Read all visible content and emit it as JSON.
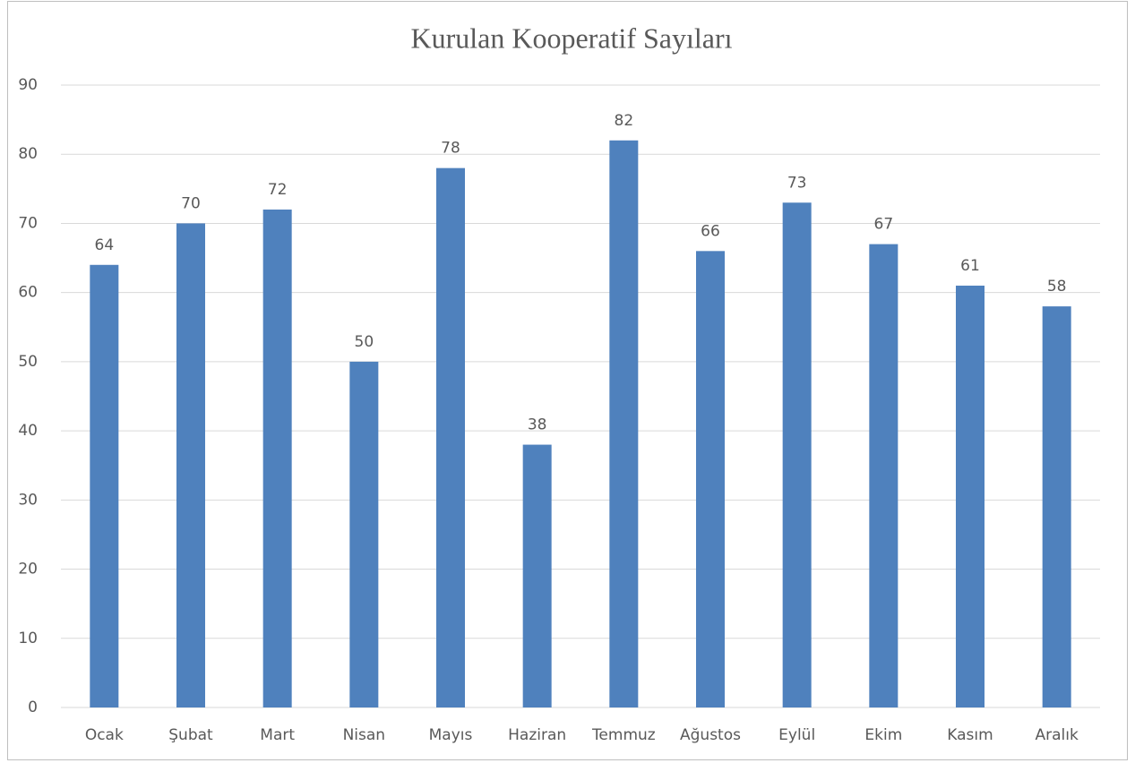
{
  "chart_data": {
    "type": "bar",
    "title": "Kurulan Kooperatif Sayıları",
    "categories": [
      "Ocak",
      "Şubat",
      "Mart",
      "Nisan",
      "Mayıs",
      "Haziran",
      "Temmuz",
      "Ağustos",
      "Eylül",
      "Ekim",
      "Kasım",
      "Aralık"
    ],
    "values": [
      64,
      70,
      72,
      50,
      78,
      38,
      82,
      66,
      73,
      67,
      61,
      58
    ],
    "color": "#4f81bd",
    "ylim": [
      0,
      90
    ],
    "yticks": [
      0,
      10,
      20,
      30,
      40,
      50,
      60,
      70,
      80,
      90
    ],
    "grid": true
  }
}
